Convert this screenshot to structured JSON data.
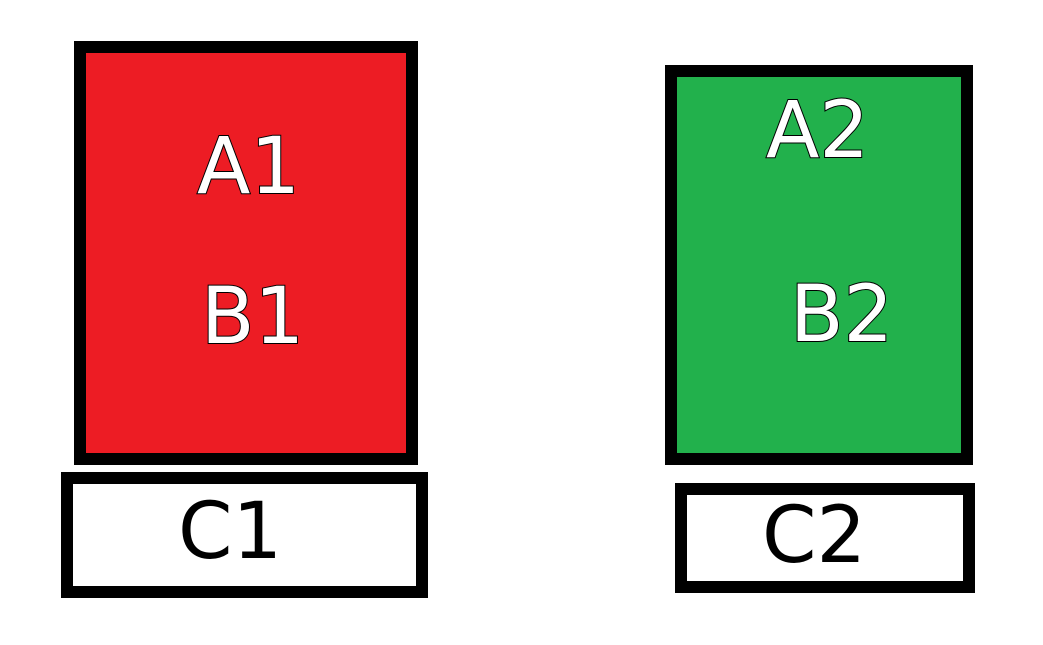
{
  "boxes": {
    "box_1": {
      "color": "#ed1c24",
      "top_label": "A1",
      "bottom_label": "B1",
      "footer_label": "C1"
    },
    "box_2": {
      "color": "#22b14c",
      "top_label": "A2",
      "bottom_label": "B2",
      "footer_label": "C2"
    }
  }
}
